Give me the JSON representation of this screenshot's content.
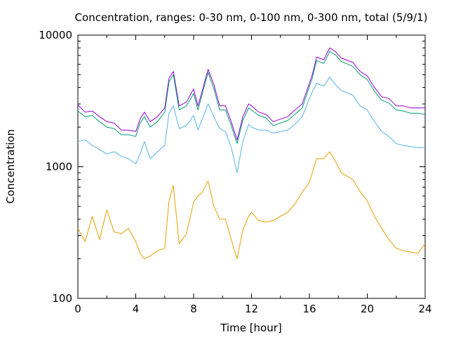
{
  "chart_data": {
    "type": "line",
    "title": "Concentration, ranges: 0-30 nm, 0-100 nm, 0-300 nm, total (5/9/1)",
    "xlabel": "Time [hour]",
    "ylabel": "Concentration",
    "xlim": [
      0,
      24
    ],
    "ylim": [
      100,
      10000
    ],
    "yscale": "log",
    "grid": false,
    "legend": "none",
    "xticks": [
      0,
      4,
      8,
      12,
      16,
      20,
      24
    ],
    "xtick_labels": [
      "0",
      "4",
      "8",
      "12",
      "16",
      "20",
      "24"
    ],
    "yticks": [
      100,
      1000,
      10000
    ],
    "ytick_labels": [
      "100",
      "1000",
      "10000"
    ],
    "x": [
      0,
      0.5,
      1,
      1.5,
      2,
      2.5,
      3,
      3.5,
      4,
      4.3,
      4.6,
      5,
      5.5,
      6,
      6.3,
      6.6,
      7,
      7.5,
      8,
      8.3,
      8.6,
      9,
      9.4,
      9.8,
      10.2,
      10.6,
      11,
      11.4,
      11.8,
      12,
      12.5,
      13,
      13.5,
      14,
      14.5,
      15,
      15.5,
      16,
      16.2,
      16.5,
      17,
      17.4,
      17.8,
      18.2,
      19,
      19.5,
      20,
      20.5,
      21,
      21.5,
      22,
      22.5,
      23,
      23.5,
      24
    ],
    "series": [
      {
        "color": "#9400d3",
        "values": [
          2950,
          2600,
          2650,
          2400,
          2200,
          2150,
          1900,
          1900,
          1850,
          2300,
          2600,
          2200,
          2400,
          2800,
          4700,
          5300,
          2900,
          3100,
          3900,
          2900,
          3800,
          5500,
          4200,
          2900,
          2900,
          2200,
          1600,
          2400,
          3000,
          2900,
          2600,
          2500,
          2200,
          2300,
          2400,
          2700,
          3000,
          4300,
          5000,
          6800,
          6500,
          8000,
          7500,
          6700,
          6200,
          5300,
          4900,
          4000,
          3400,
          3300,
          2900,
          2900,
          2800,
          2800,
          2800
        ]
      },
      {
        "color": "#009e73",
        "values": [
          2650,
          2400,
          2450,
          2200,
          2000,
          1950,
          1750,
          1750,
          1700,
          2150,
          2400,
          2000,
          2200,
          2600,
          4400,
          5000,
          2700,
          2900,
          3600,
          2700,
          3600,
          5200,
          3900,
          2700,
          2700,
          2050,
          1500,
          2250,
          2800,
          2700,
          2450,
          2350,
          2050,
          2150,
          2250,
          2500,
          2800,
          4050,
          4700,
          6400,
          6100,
          7500,
          7100,
          6300,
          5800,
          5000,
          4600,
          3750,
          3200,
          3050,
          2700,
          2650,
          2550,
          2550,
          2500
        ]
      },
      {
        "color": "#56b4e9",
        "values": [
          1550,
          1600,
          1450,
          1350,
          1250,
          1300,
          1200,
          1150,
          1050,
          1250,
          1550,
          1150,
          1300,
          1450,
          2550,
          2900,
          1950,
          2050,
          2450,
          1900,
          2300,
          3000,
          2400,
          1950,
          1850,
          1400,
          900,
          1550,
          2100,
          2000,
          1900,
          1900,
          1800,
          1850,
          1900,
          2100,
          2400,
          3300,
          3700,
          4300,
          4100,
          4800,
          4200,
          3800,
          3500,
          2900,
          2700,
          2200,
          1850,
          1700,
          1500,
          1450,
          1420,
          1400,
          1400
        ]
      },
      {
        "color": "#e69f00",
        "values": [
          340,
          270,
          420,
          280,
          470,
          320,
          310,
          340,
          270,
          220,
          200,
          210,
          230,
          240,
          550,
          720,
          260,
          310,
          540,
          600,
          640,
          780,
          500,
          400,
          400,
          280,
          200,
          330,
          420,
          450,
          390,
          380,
          390,
          420,
          450,
          520,
          640,
          760,
          900,
          1150,
          1150,
          1300,
          1100,
          900,
          800,
          650,
          550,
          420,
          340,
          280,
          240,
          230,
          225,
          220,
          260
        ]
      }
    ]
  }
}
